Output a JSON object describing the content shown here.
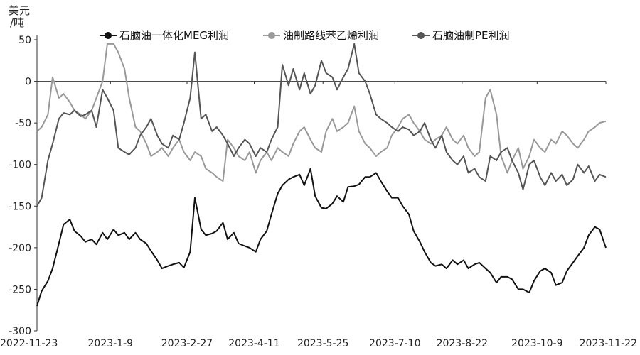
{
  "chart_data": {
    "type": "line",
    "ylabel_line1": "美元",
    "ylabel_line2": "/吨",
    "ylim": [
      -300,
      50
    ],
    "yticks": [
      50,
      0,
      -50,
      -100,
      -150,
      -200,
      -250,
      -300
    ],
    "ytick_labels": [
      "50",
      "0",
      "-50",
      "-100",
      "-150",
      "-200",
      "-250",
      "-300"
    ],
    "xlim": [
      "2022-11-23",
      "2023-11-22"
    ],
    "xticks": [
      "2022-11-23",
      "2023-1-9",
      "2023-2-27",
      "2023-4-11",
      "2023-5-25",
      "2023-7-10",
      "2023-8-22",
      "2023-10-9",
      "2023-11-22"
    ],
    "grid": false,
    "legend_position": "top",
    "series": [
      {
        "name": "石脑油一体化MEG利润",
        "color": "#111111",
        "x": [
          "2022-11-23",
          "2022-11-26",
          "2022-11-30",
          "2022-12-03",
          "2022-12-07",
          "2022-12-10",
          "2022-12-14",
          "2022-12-17",
          "2022-12-21",
          "2022-12-24",
          "2022-12-28",
          "2022-12-31",
          "2023-01-04",
          "2023-01-07",
          "2023-01-11",
          "2023-01-14",
          "2023-01-18",
          "2023-01-21",
          "2023-01-25",
          "2023-01-28",
          "2023-02-01",
          "2023-02-04",
          "2023-02-08",
          "2023-02-11",
          "2023-02-15",
          "2023-02-18",
          "2023-02-22",
          "2023-02-25",
          "2023-03-01",
          "2023-03-04",
          "2023-03-08",
          "2023-03-11",
          "2023-03-15",
          "2023-03-18",
          "2023-03-22",
          "2023-03-25",
          "2023-03-29",
          "2023-04-01",
          "2023-04-05",
          "2023-04-08",
          "2023-04-12",
          "2023-04-15",
          "2023-04-19",
          "2023-04-22",
          "2023-04-26",
          "2023-04-29",
          "2023-05-03",
          "2023-05-06",
          "2023-05-10",
          "2023-05-13",
          "2023-05-17",
          "2023-05-20",
          "2023-05-24",
          "2023-05-27",
          "2023-05-31",
          "2023-06-03",
          "2023-06-07",
          "2023-06-10",
          "2023-06-14",
          "2023-06-17",
          "2023-06-21",
          "2023-06-24",
          "2023-06-28",
          "2023-07-01",
          "2023-07-05",
          "2023-07-08",
          "2023-07-12",
          "2023-07-15",
          "2023-07-19",
          "2023-07-22",
          "2023-07-26",
          "2023-07-29",
          "2023-08-02",
          "2023-08-05",
          "2023-08-09",
          "2023-08-12",
          "2023-08-16",
          "2023-08-19",
          "2023-08-23",
          "2023-08-26",
          "2023-08-30",
          "2023-09-02",
          "2023-09-06",
          "2023-09-09",
          "2023-09-13",
          "2023-09-16",
          "2023-09-20",
          "2023-09-23",
          "2023-09-27",
          "2023-09-30",
          "2023-10-04",
          "2023-10-07",
          "2023-10-11",
          "2023-10-14",
          "2023-10-18",
          "2023-10-21",
          "2023-10-25",
          "2023-10-28",
          "2023-11-01",
          "2023-11-04",
          "2023-11-08",
          "2023-11-11",
          "2023-11-15",
          "2023-11-18",
          "2023-11-22"
        ],
        "values": [
          -270,
          -252,
          -240,
          -225,
          -195,
          -172,
          -166,
          -180,
          -186,
          -193,
          -190,
          -196,
          -182,
          -190,
          -178,
          -185,
          -182,
          -190,
          -182,
          -190,
          -195,
          -204,
          -215,
          -225,
          -222,
          -220,
          -218,
          -224,
          -205,
          -140,
          -178,
          -185,
          -183,
          -180,
          -170,
          -190,
          -182,
          -195,
          -198,
          -200,
          -205,
          -190,
          -180,
          -160,
          -135,
          -125,
          -118,
          -115,
          -112,
          -125,
          -105,
          -138,
          -152,
          -153,
          -147,
          -138,
          -145,
          -127,
          -126,
          -124,
          -115,
          -115,
          -110,
          -120,
          -132,
          -140,
          -140,
          -150,
          -160,
          -180,
          -193,
          -205,
          -218,
          -222,
          -220,
          -225,
          -215,
          -220,
          -215,
          -225,
          -220,
          -218,
          -225,
          -230,
          -242,
          -235,
          -235,
          -238,
          -250,
          -250,
          -254,
          -240,
          -228,
          -225,
          -230,
          -245,
          -242,
          -228,
          -218,
          -210,
          -200,
          -185,
          -175,
          -178,
          -200
        ]
      },
      {
        "name": "油制路线苯乙烯利润",
        "color": "#999999",
        "x": [
          "2022-11-23",
          "2022-11-26",
          "2022-11-30",
          "2022-12-03",
          "2022-12-07",
          "2022-12-10",
          "2022-12-14",
          "2022-12-17",
          "2022-12-21",
          "2022-12-24",
          "2022-12-28",
          "2022-12-31",
          "2023-01-04",
          "2023-01-07",
          "2023-01-11",
          "2023-01-14",
          "2023-01-18",
          "2023-01-21",
          "2023-01-25",
          "2023-01-28",
          "2023-02-01",
          "2023-02-04",
          "2023-02-08",
          "2023-02-11",
          "2023-02-15",
          "2023-02-18",
          "2023-02-22",
          "2023-02-25",
          "2023-03-01",
          "2023-03-04",
          "2023-03-08",
          "2023-03-11",
          "2023-03-15",
          "2023-03-18",
          "2023-03-22",
          "2023-03-25",
          "2023-03-29",
          "2023-04-01",
          "2023-04-05",
          "2023-04-08",
          "2023-04-12",
          "2023-04-15",
          "2023-04-19",
          "2023-04-22",
          "2023-04-26",
          "2023-04-29",
          "2023-05-03",
          "2023-05-06",
          "2023-05-10",
          "2023-05-13",
          "2023-05-17",
          "2023-05-20",
          "2023-05-24",
          "2023-05-27",
          "2023-05-31",
          "2023-06-03",
          "2023-06-07",
          "2023-06-10",
          "2023-06-14",
          "2023-06-17",
          "2023-06-21",
          "2023-06-24",
          "2023-06-28",
          "2023-07-01",
          "2023-07-05",
          "2023-07-08",
          "2023-07-12",
          "2023-07-15",
          "2023-07-19",
          "2023-07-22",
          "2023-07-26",
          "2023-07-29",
          "2023-08-02",
          "2023-08-05",
          "2023-08-09",
          "2023-08-12",
          "2023-08-16",
          "2023-08-19",
          "2023-08-23",
          "2023-08-26",
          "2023-08-30",
          "2023-09-02",
          "2023-09-06",
          "2023-09-09",
          "2023-09-13",
          "2023-09-16",
          "2023-09-20",
          "2023-09-23",
          "2023-09-27",
          "2023-09-30",
          "2023-10-04",
          "2023-10-07",
          "2023-10-11",
          "2023-10-14",
          "2023-10-18",
          "2023-10-21",
          "2023-10-25",
          "2023-10-28",
          "2023-11-01",
          "2023-11-04",
          "2023-11-08",
          "2023-11-11",
          "2023-11-15",
          "2023-11-18",
          "2023-11-22"
        ],
        "values": [
          -60,
          -55,
          -40,
          5,
          -20,
          -15,
          -25,
          -35,
          -40,
          -45,
          -35,
          -20,
          0,
          45,
          45,
          35,
          15,
          -20,
          -55,
          -60,
          -75,
          -90,
          -85,
          -80,
          -90,
          -80,
          -70,
          -85,
          -95,
          -85,
          -90,
          -105,
          -110,
          -115,
          -120,
          -70,
          -80,
          -90,
          -95,
          -85,
          -110,
          -95,
          -85,
          -95,
          -80,
          -85,
          -90,
          -75,
          -60,
          -55,
          -70,
          -80,
          -85,
          -60,
          -45,
          -60,
          -55,
          -50,
          -30,
          -60,
          -75,
          -80,
          -90,
          -85,
          -80,
          -65,
          -55,
          -45,
          -40,
          -50,
          -60,
          -70,
          -75,
          -70,
          -65,
          -55,
          -70,
          -75,
          -65,
          -80,
          -90,
          -85,
          -20,
          -10,
          -40,
          -90,
          -110,
          -95,
          -80,
          -105,
          -90,
          -70,
          -80,
          -85,
          -70,
          -75,
          -60,
          -65,
          -75,
          -80,
          -70,
          -60,
          -55,
          -50,
          -48
        ]
      },
      {
        "name": "石脑油制PE利润",
        "color": "#555555",
        "x": [
          "2022-11-23",
          "2022-11-26",
          "2022-11-30",
          "2022-12-03",
          "2022-12-07",
          "2022-12-10",
          "2022-12-14",
          "2022-12-17",
          "2022-12-21",
          "2022-12-24",
          "2022-12-28",
          "2022-12-31",
          "2023-01-04",
          "2023-01-07",
          "2023-01-11",
          "2023-01-14",
          "2023-01-18",
          "2023-01-21",
          "2023-01-25",
          "2023-01-28",
          "2023-02-01",
          "2023-02-04",
          "2023-02-08",
          "2023-02-11",
          "2023-02-15",
          "2023-02-18",
          "2023-02-22",
          "2023-02-25",
          "2023-03-01",
          "2023-03-04",
          "2023-03-08",
          "2023-03-11",
          "2023-03-15",
          "2023-03-18",
          "2023-03-22",
          "2023-03-25",
          "2023-03-29",
          "2023-04-01",
          "2023-04-05",
          "2023-04-08",
          "2023-04-12",
          "2023-04-15",
          "2023-04-19",
          "2023-04-22",
          "2023-04-26",
          "2023-04-29",
          "2023-05-03",
          "2023-05-06",
          "2023-05-10",
          "2023-05-13",
          "2023-05-17",
          "2023-05-20",
          "2023-05-24",
          "2023-05-27",
          "2023-05-31",
          "2023-06-03",
          "2023-06-07",
          "2023-06-10",
          "2023-06-14",
          "2023-06-17",
          "2023-06-21",
          "2023-06-24",
          "2023-06-28",
          "2023-07-01",
          "2023-07-05",
          "2023-07-08",
          "2023-07-12",
          "2023-07-15",
          "2023-07-19",
          "2023-07-22",
          "2023-07-26",
          "2023-07-29",
          "2023-08-02",
          "2023-08-05",
          "2023-08-09",
          "2023-08-12",
          "2023-08-16",
          "2023-08-19",
          "2023-08-23",
          "2023-08-26",
          "2023-08-30",
          "2023-09-02",
          "2023-09-06",
          "2023-09-09",
          "2023-09-13",
          "2023-09-16",
          "2023-09-20",
          "2023-09-23",
          "2023-09-27",
          "2023-09-30",
          "2023-10-04",
          "2023-10-07",
          "2023-10-11",
          "2023-10-14",
          "2023-10-18",
          "2023-10-21",
          "2023-10-25",
          "2023-10-28",
          "2023-11-01",
          "2023-11-04",
          "2023-11-08",
          "2023-11-11",
          "2023-11-15",
          "2023-11-18",
          "2023-11-22"
        ],
        "values": [
          -150,
          -140,
          -95,
          -75,
          -45,
          -38,
          -40,
          -35,
          -42,
          -40,
          -35,
          -55,
          -10,
          -20,
          -35,
          -80,
          -85,
          -88,
          -80,
          -65,
          -55,
          -45,
          -65,
          -75,
          -80,
          -65,
          -70,
          -50,
          -20,
          35,
          -45,
          -40,
          -60,
          -55,
          -65,
          -75,
          -90,
          -80,
          -70,
          -75,
          -90,
          -80,
          -85,
          -70,
          -55,
          20,
          -5,
          15,
          -10,
          10,
          -15,
          -5,
          25,
          10,
          5,
          -10,
          5,
          15,
          45,
          10,
          0,
          -15,
          -40,
          -45,
          -50,
          -55,
          -60,
          -55,
          -58,
          -65,
          -60,
          -50,
          -70,
          -80,
          -65,
          -85,
          -95,
          -100,
          -90,
          -110,
          -105,
          -115,
          -120,
          -90,
          -95,
          -85,
          -80,
          -95,
          -110,
          -130,
          -100,
          -95,
          -115,
          -125,
          -110,
          -120,
          -112,
          -125,
          -118,
          -100,
          -110,
          -102,
          -120,
          -112,
          -115
        ]
      }
    ]
  }
}
